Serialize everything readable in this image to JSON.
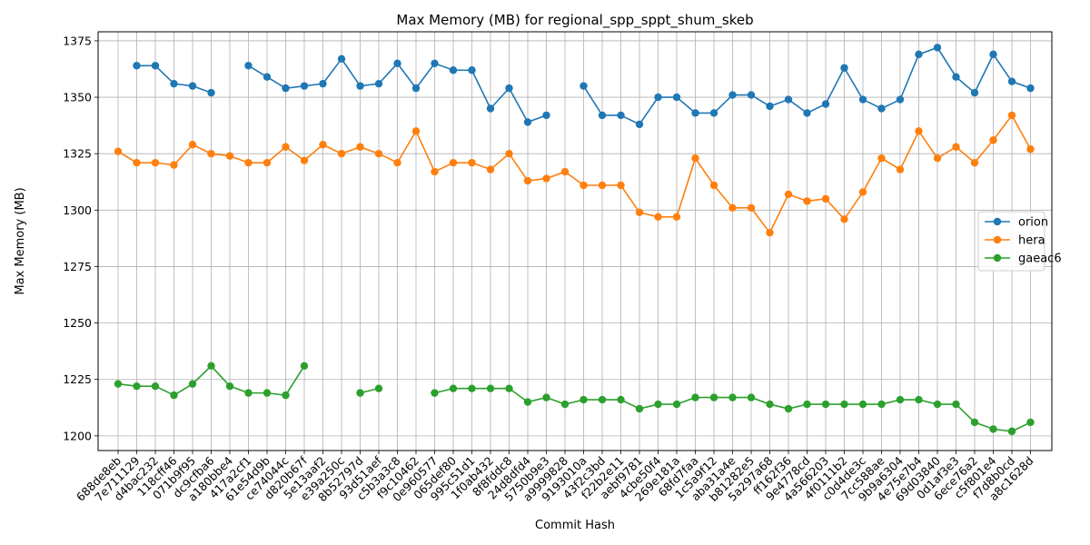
{
  "chart_data": {
    "type": "line",
    "title": "Max Memory (MB) for regional_spp_sppt_shum_skeb",
    "xlabel": "Commit Hash",
    "ylabel": "Max Memory (MB)",
    "ylim": [
      1193.5,
      1379
    ],
    "yticks": [
      1200,
      1225,
      1250,
      1275,
      1300,
      1325,
      1350,
      1375
    ],
    "grid": true,
    "legend": "center-right",
    "categories": [
      "688de8eb",
      "7e711129",
      "d4bac232",
      "118cff46",
      "071b9f95",
      "dc9cfba6",
      "a180bbe4",
      "417a2cf1",
      "61e54d9b",
      "ce74044c",
      "d820b67f",
      "5e13aaf2",
      "e39a250c",
      "8b52797d",
      "93d51aef",
      "c5b3a3c8",
      "f9c10462",
      "0e960577",
      "065def80",
      "995c51d1",
      "1f0ab432",
      "8f8fddc8",
      "24d8dfd4",
      "5750b9e3",
      "a9999828",
      "9193010a",
      "43f2c3bd",
      "f22b2e11",
      "aebf9781",
      "4cbe50f4",
      "269e181a",
      "68fd7faa",
      "1c5a9f12",
      "aba31a4e",
      "b81282e5",
      "5a297a68",
      "ff162f36",
      "9e4778cd",
      "4a566203",
      "4f0111b2",
      "c0d4de3c",
      "7cc588ae",
      "9b9a6304",
      "4e75e7b4",
      "69d03840",
      "0d1af3e3",
      "6ece76a2",
      "c5f801e4",
      "f7d8b0cd",
      "a8c1628d"
    ],
    "series": [
      {
        "name": "orion",
        "color": "#1f77b4",
        "values": [
          null,
          1364,
          1364,
          1356,
          1355,
          1352,
          null,
          1364,
          1359,
          1354,
          1355,
          1356,
          1367,
          1355,
          1356,
          1365,
          1354,
          1365,
          1362,
          1362,
          1345,
          1354,
          1339,
          1342,
          null,
          1355,
          1342,
          1342,
          1338,
          1350,
          1350,
          1343,
          1343,
          1351,
          1351,
          1346,
          1349,
          1343,
          1347,
          1363,
          1349,
          1345,
          1349,
          1369,
          1372,
          1359,
          1352,
          1369,
          1357,
          1354
        ]
      },
      {
        "name": "hera",
        "color": "#ff7f0e",
        "values": [
          1326,
          1321,
          1321,
          1320,
          1329,
          1325,
          1324,
          1321,
          1321,
          1328,
          1322,
          1329,
          1325,
          1328,
          1325,
          1321,
          1335,
          1317,
          1321,
          1321,
          1318,
          1325,
          1313,
          1314,
          1317,
          1311,
          1311,
          1311,
          1299,
          1297,
          1297,
          1323,
          1311,
          1301,
          1301,
          1290,
          1307,
          1304,
          1305,
          1296,
          1308,
          1323,
          1318,
          1335,
          1323,
          1328,
          1321,
          1331,
          1342,
          1327
        ]
      },
      {
        "name": "gaeac6",
        "color": "#2ca02c",
        "values": [
          1223,
          1222,
          1222,
          1218,
          1223,
          1231,
          1222,
          1219,
          1219,
          1218,
          1231,
          null,
          null,
          1219,
          1221,
          null,
          null,
          1219,
          1221,
          1221,
          1221,
          1221,
          1215,
          1217,
          1214,
          1216,
          1216,
          1216,
          1212,
          1214,
          1214,
          1217,
          1217,
          1217,
          1217,
          1214,
          1212,
          1214,
          1214,
          1214,
          1214,
          1214,
          1216,
          1216,
          1214,
          1214,
          1206,
          1203,
          1202,
          1206
        ]
      }
    ]
  }
}
